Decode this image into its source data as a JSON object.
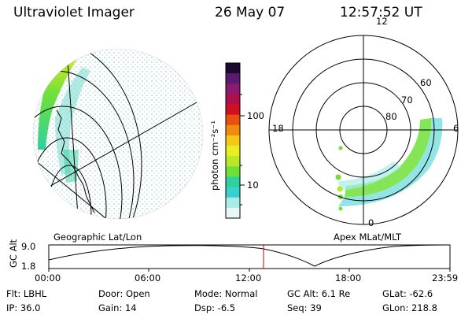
{
  "header": {
    "instrument": "Ultraviolet Imager",
    "date": "26 May 07",
    "time": "12:57:52 UT"
  },
  "colorbar": {
    "label": "photon cm⁻²s⁻¹",
    "ticks": [
      "100",
      "10"
    ],
    "colors": [
      "#1a0b2e",
      "#5a1a6e",
      "#8c1a6e",
      "#b0104a",
      "#d01020",
      "#e85010",
      "#f08a10",
      "#f6c81a",
      "#e8ee20",
      "#b8e828",
      "#6fe03a",
      "#2fd0a0",
      "#3ad0d0",
      "#a8ece8",
      "#e8f6f6"
    ]
  },
  "left_panel": {
    "label": "Geographic Lat/Lon"
  },
  "right_panel": {
    "label": "Apex  MLat/MLT",
    "lat_labels": [
      "60",
      "70",
      "80"
    ],
    "mlt_labels": {
      "top": "12",
      "left": "18",
      "right": "6",
      "bottom": "0"
    }
  },
  "altitude_plot": {
    "ylabel": "GC Alt",
    "ytick_top": "9.0",
    "ytick_bottom": "1.8",
    "xticks": [
      "00:00",
      "06:00",
      "12:00",
      "18:00",
      "23:59"
    ],
    "current_time_marker": "12:57"
  },
  "info": {
    "flt": "Flt: LBHL",
    "ip": "IP: 36.0",
    "door": "Door: Open",
    "gain": "Gain: 14",
    "mode": "Mode: Normal",
    "dsp": "Dsp:    -6.5",
    "gc_alt": "GC Alt: 6.1 Re",
    "seq": "Seq: 39",
    "glat": "GLat: -62.6",
    "glon": "GLon: 218.8"
  }
}
